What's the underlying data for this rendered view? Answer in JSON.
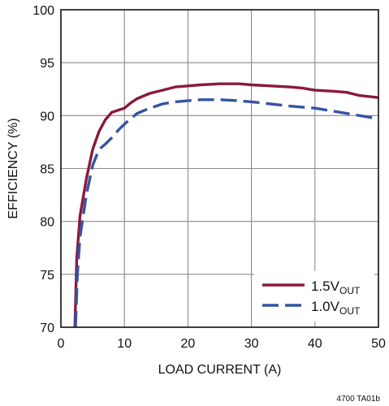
{
  "chart_data": {
    "type": "line",
    "xlabel": "LOAD CURRENT (A)",
    "ylabel": "EFFICIENCY (%)",
    "xlim": [
      0,
      50
    ],
    "ylim": [
      70,
      100
    ],
    "x_ticks": [
      "0",
      "10",
      "20",
      "30",
      "40",
      "50"
    ],
    "y_ticks": [
      "70",
      "75",
      "80",
      "85",
      "90",
      "95",
      "100"
    ],
    "grid": true,
    "legend_position": "bottom-right",
    "series": [
      {
        "name": "1.5V",
        "name_sub": "OUT",
        "color": "#8b1a3a",
        "style": "solid",
        "points": [
          [
            2.2,
            70.0
          ],
          [
            2.5,
            76.5
          ],
          [
            3,
            80.5
          ],
          [
            4,
            84.0
          ],
          [
            5,
            86.8
          ],
          [
            6,
            88.5
          ],
          [
            7,
            89.6
          ],
          [
            8,
            90.3
          ],
          [
            9,
            90.5
          ],
          [
            10,
            90.7
          ],
          [
            11,
            91.2
          ],
          [
            12,
            91.6
          ],
          [
            14,
            92.1
          ],
          [
            16,
            92.4
          ],
          [
            18,
            92.7
          ],
          [
            20,
            92.8
          ],
          [
            22,
            92.9
          ],
          [
            25,
            93.0
          ],
          [
            28,
            93.0
          ],
          [
            30,
            92.9
          ],
          [
            33,
            92.8
          ],
          [
            36,
            92.7
          ],
          [
            38,
            92.6
          ],
          [
            40,
            92.4
          ],
          [
            43,
            92.3
          ],
          [
            45,
            92.2
          ],
          [
            47,
            91.9
          ],
          [
            50,
            91.7
          ]
        ]
      },
      {
        "name": "1.0V",
        "name_sub": "OUT",
        "color": "#3553a4",
        "style": "dashed",
        "points": [
          [
            2.3,
            70.0
          ],
          [
            2.6,
            75.0
          ],
          [
            3,
            78.5
          ],
          [
            4,
            82.5
          ],
          [
            5,
            85.3
          ],
          [
            6,
            86.8
          ],
          [
            7,
            87.3
          ],
          [
            8,
            87.9
          ],
          [
            9,
            88.6
          ],
          [
            10,
            89.2
          ],
          [
            11,
            89.7
          ],
          [
            12,
            90.2
          ],
          [
            14,
            90.7
          ],
          [
            16,
            91.1
          ],
          [
            18,
            91.3
          ],
          [
            20,
            91.4
          ],
          [
            22,
            91.5
          ],
          [
            25,
            91.5
          ],
          [
            28,
            91.4
          ],
          [
            30,
            91.3
          ],
          [
            33,
            91.1
          ],
          [
            36,
            90.9
          ],
          [
            38,
            90.8
          ],
          [
            40,
            90.7
          ],
          [
            43,
            90.4
          ],
          [
            45,
            90.2
          ],
          [
            47,
            90.0
          ],
          [
            50,
            89.7
          ]
        ]
      }
    ]
  },
  "figure_id": "4700 TA01b"
}
